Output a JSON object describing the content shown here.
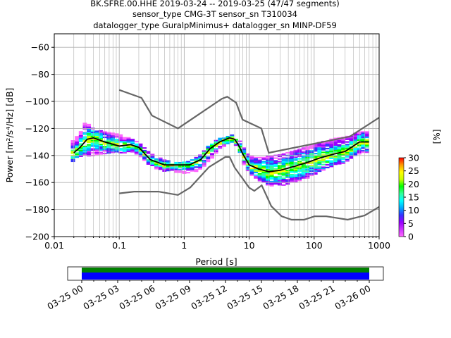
{
  "title": {
    "line1": "BK.SFRE.00.HHE   2019-03-24 -- 2019-03-25  (47/47 segments)",
    "line2": "sensor_type CMG-3T sensor_sn T310034",
    "line3": "datalogger_type GuralpMinimus+ datalogger_sn MINP-DF59"
  },
  "chart_data": [
    {
      "type": "heatmap",
      "title": "BK.SFRE.00.HHE   2019-03-24 -- 2019-03-25  (47/47 segments)",
      "xlabel": "Period [s]",
      "ylabel": "Power [m²/s⁴/Hz] [dB]",
      "xscale": "log",
      "xlim": [
        0.01,
        1000
      ],
      "ylim": [
        -200,
        -50
      ],
      "grid": true,
      "x_tick_labels": [
        "0.01",
        "0.1",
        "1",
        "10",
        "100",
        "1000"
      ],
      "x_ticks": [
        0.01,
        0.1,
        1,
        10,
        100,
        1000
      ],
      "y_ticks": [
        -200,
        -180,
        -160,
        -140,
        -120,
        -100,
        -80,
        -60
      ],
      "colorbar": {
        "label": "[%]",
        "range": [
          0,
          30
        ],
        "ticks": [
          0,
          5,
          10,
          15,
          20,
          25,
          30
        ]
      },
      "series": [
        {
          "name": "NHNM",
          "color": "#666666",
          "x": [
            0.1,
            0.22,
            0.32,
            0.8,
            3.8,
            4.6,
            6.3,
            7.9,
            15.4,
            20,
            354,
            1000
          ],
          "y": [
            -91.5,
            -97.4,
            -110.5,
            -120,
            -98,
            -96.5,
            -101,
            -113.5,
            -120,
            -138,
            -126,
            -112
          ]
        },
        {
          "name": "NLNM",
          "color": "#666666",
          "x": [
            0.1,
            0.17,
            0.4,
            0.8,
            1.24,
            2.4,
            4.3,
            5,
            6,
            10,
            12,
            15.6,
            21.9,
            31.6,
            45,
            70,
            101,
            154,
            328,
            600,
            1000
          ],
          "y": [
            -168,
            -166.7,
            -166.7,
            -169.2,
            -163.7,
            -148.6,
            -141.1,
            -141.1,
            -149,
            -163.8,
            -166.2,
            -162.1,
            -177.5,
            -185,
            -187.5,
            -187.5,
            -185,
            -185,
            -187.5,
            -184.4,
            -178
          ]
        },
        {
          "name": "mode",
          "color": "#000000",
          "x": [
            0.02,
            0.025,
            0.032,
            0.04,
            0.06,
            0.1,
            0.15,
            0.2,
            0.3,
            0.5,
            0.8,
            1.2,
            1.8,
            2.5,
            3.5,
            5,
            6,
            7,
            8,
            10,
            14,
            20,
            30,
            50,
            80,
            120,
            200,
            300,
            500,
            700
          ],
          "y": [
            -138,
            -134,
            -128,
            -127,
            -130,
            -133,
            -132,
            -134,
            -143,
            -147,
            -147,
            -147,
            -143,
            -135,
            -130,
            -127,
            -128,
            -133,
            -139,
            -147,
            -150,
            -152,
            -151,
            -148,
            -145,
            -142,
            -139,
            -137,
            -130,
            -130
          ]
        }
      ],
      "density_band": {
        "x": [
          0.018,
          0.02,
          0.025,
          0.03,
          0.035,
          0.04,
          0.06,
          0.1,
          0.15,
          0.2,
          0.3,
          0.5,
          0.8,
          1.2,
          1.8,
          2.5,
          3.5,
          5,
          6,
          7,
          8,
          10,
          14,
          20,
          30,
          50,
          80,
          120,
          200,
          300,
          500,
          700
        ],
        "upper": [
          -130,
          -128,
          -123,
          -115,
          -117,
          -120,
          -122,
          -124,
          -127,
          -130,
          -138,
          -143,
          -145,
          -144,
          -139,
          -131,
          -127,
          -124,
          -125,
          -128,
          -133,
          -140,
          -140,
          -140,
          -139,
          -136,
          -133,
          -130,
          -127,
          -126,
          -122,
          -122
        ],
        "lower": [
          -146,
          -143,
          -140,
          -140,
          -140,
          -140,
          -138,
          -138,
          -137,
          -139,
          -148,
          -151,
          -152,
          -153,
          -150,
          -143,
          -135,
          -130,
          -131,
          -137,
          -145,
          -153,
          -158,
          -162,
          -162,
          -160,
          -156,
          -152,
          -147,
          -145,
          -138,
          -138
        ]
      }
    },
    {
      "type": "bar",
      "title": "",
      "xlabel": "",
      "ylabel": "",
      "x_tick_labels": [
        "03-25 00",
        "03-25 03",
        "03-25 06",
        "03-25 09",
        "03-25 12",
        "03-25 15",
        "03-25 18",
        "03-25 21",
        "03-26 00"
      ],
      "coverage_segments": [
        {
          "name": "data",
          "color": "#0000ff",
          "start": "03-25 00",
          "end": "03-26 00"
        },
        {
          "name": "psd",
          "color": "#008000",
          "start": "03-25 00",
          "end": "03-26 00"
        }
      ]
    }
  ]
}
